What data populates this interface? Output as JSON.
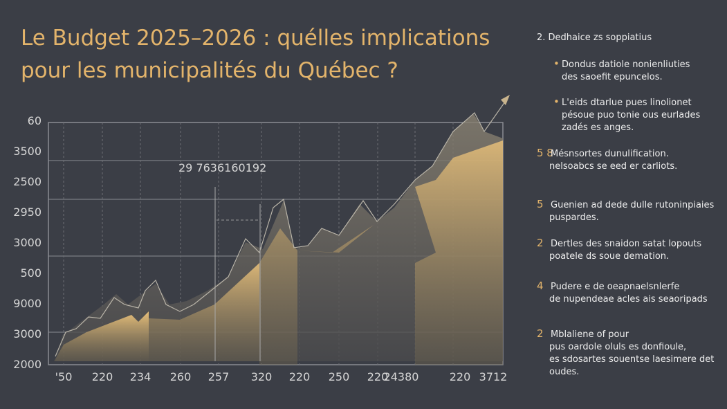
{
  "title": [
    "Le Budget 2025–2026 : quélles implications",
    "pour les municipalités du Québec ?"
  ],
  "chart": {
    "y_labels": [
      "60",
      "3500",
      "2500",
      "2950",
      "3000",
      "500",
      "9000",
      "3000",
      "2000"
    ],
    "x_labels": [
      "'50",
      "220",
      "234",
      "260",
      "257",
      "320",
      "220",
      "250",
      "220",
      "24380",
      "220",
      "3712"
    ],
    "annotation": "29 7636160192"
  },
  "sidebar": {
    "heading": "2. Dedhaice zs soppiatius",
    "items": [
      {
        "marker": "•",
        "lines": [
          "Dondus datiole nonienliuties",
          "des saoefit epuncelos."
        ]
      },
      {
        "marker": "•",
        "lines": [
          "L'eids dtarlue pues linolionet",
          "pésoue puo tonie ous eurlades",
          "zadés es anges."
        ]
      },
      {
        "marker": "5  8",
        "lines": [
          "Mésnsortes dunulification.",
          "nelsoabcs se eed er carliots."
        ]
      },
      {
        "marker": "5",
        "lines": [
          "Guenien ad dede dulle rutoninpiaies",
          "puspardes."
        ]
      },
      {
        "marker": "2",
        "lines": [
          "Dertles des snaidon satat lopouts",
          "poatele ds soue demation."
        ]
      },
      {
        "marker": "4",
        "lines": [
          "Pudere e de oeapnaelsnlerfe",
          "de nupendeae acles ais seaoripads"
        ]
      },
      {
        "marker": "2",
        "lines": [
          "Mblaliene of pour",
          "pus oardole oluls es donfioule,",
          "es sdosartes souentse laesimere det",
          "oudes."
        ]
      }
    ]
  }
}
